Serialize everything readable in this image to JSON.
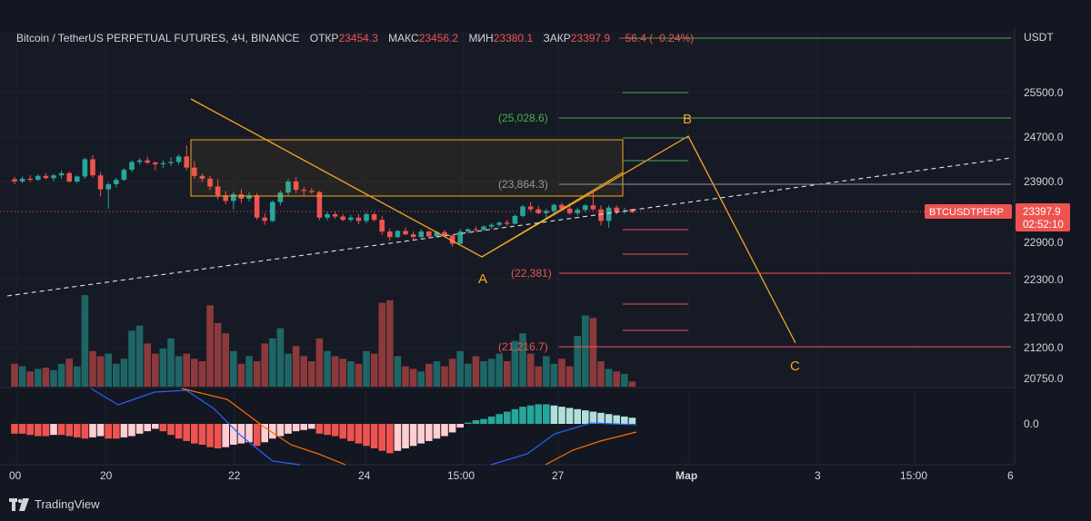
{
  "header": {
    "symbol": "Bitcoin / TetherUS PERPETUAL FUTURES, 4Ч, BINANCE",
    "open_label": "ОТКР",
    "open": "23454.3",
    "high_label": "МАКС",
    "high": "23456.2",
    "low_label": "МИН",
    "low": "23380.1",
    "close_label": "ЗАКР",
    "close": "23397.9",
    "change": "−56.4 (−0.24%)"
  },
  "price_axis": {
    "currency": "USDT",
    "ticks": [
      "25500.0",
      "24700.0",
      "23900.0",
      "22900.0",
      "22300.0",
      "21700.0",
      "21200.0",
      "20750.0"
    ],
    "macd_zero": "0.0"
  },
  "price_tag": {
    "symbol": "BTCUSDTPERP",
    "price": "23397.9",
    "countdown": "02:52:10"
  },
  "time_axis": [
    "00",
    "20",
    "22",
    "24",
    "15:00",
    "27",
    "Мар",
    "3",
    "15:00",
    "6"
  ],
  "fib_labels": [
    "(25,028.6)",
    "(23,864.3)",
    "(22,381)",
    "(21,216.7)"
  ],
  "pattern_labels": [
    "A",
    "B",
    "C"
  ],
  "brand": "TradingView",
  "colors": {
    "up": "#26a69a",
    "down": "#ef5350",
    "drawing": "#f5a623",
    "bg": "#131722"
  },
  "chart_data": {
    "type": "candlestick",
    "price_range": [
      20500,
      26400
    ],
    "candles": [
      [
        23990,
        24030,
        23900,
        23950
      ],
      [
        23950,
        24040,
        23920,
        24000
      ],
      [
        24000,
        24060,
        23940,
        23980
      ],
      [
        23980,
        24080,
        23960,
        24050
      ],
      [
        24050,
        24100,
        23990,
        24010
      ],
      [
        24010,
        24090,
        23960,
        24060
      ],
      [
        24060,
        24150,
        24000,
        24100
      ],
      [
        24100,
        24130,
        23930,
        23950
      ],
      [
        23950,
        24060,
        23920,
        24040
      ],
      [
        24040,
        24380,
        24000,
        24350
      ],
      [
        24350,
        24420,
        24020,
        24060
      ],
      [
        24060,
        24120,
        23680,
        23810
      ],
      [
        23810,
        23940,
        23460,
        23900
      ],
      [
        23900,
        24020,
        23840,
        23980
      ],
      [
        23980,
        24190,
        23960,
        24160
      ],
      [
        24160,
        24330,
        24120,
        24300
      ],
      [
        24300,
        24370,
        24250,
        24330
      ],
      [
        24330,
        24400,
        24260,
        24290
      ],
      [
        24290,
        24310,
        24150,
        24260
      ],
      [
        24260,
        24330,
        24190,
        24280
      ],
      [
        24280,
        24390,
        24230,
        24300
      ],
      [
        24300,
        24440,
        24250,
        24400
      ],
      [
        24400,
        24600,
        24150,
        24200
      ],
      [
        24200,
        24320,
        24000,
        24050
      ],
      [
        24050,
        24090,
        23940,
        24000
      ],
      [
        24000,
        24050,
        23790,
        23860
      ],
      [
        23860,
        23990,
        23630,
        23700
      ],
      [
        23700,
        23780,
        23540,
        23600
      ],
      [
        23600,
        23760,
        23450,
        23720
      ],
      [
        23720,
        23810,
        23560,
        23640
      ],
      [
        23640,
        23760,
        23590,
        23700
      ],
      [
        23700,
        23740,
        23260,
        23300
      ],
      [
        23300,
        23380,
        23170,
        23240
      ],
      [
        23240,
        23610,
        23220,
        23580
      ],
      [
        23580,
        23790,
        23520,
        23750
      ],
      [
        23750,
        24000,
        23700,
        23950
      ],
      [
        23950,
        24030,
        23740,
        23800
      ],
      [
        23800,
        23850,
        23680,
        23780
      ],
      [
        23780,
        23830,
        23730,
        23760
      ],
      [
        23760,
        23780,
        23250,
        23300
      ],
      [
        23300,
        23400,
        23250,
        23360
      ],
      [
        23360,
        23420,
        23280,
        23320
      ],
      [
        23320,
        23360,
        23240,
        23260
      ],
      [
        23260,
        23350,
        23220,
        23300
      ],
      [
        23300,
        23360,
        23180,
        23240
      ],
      [
        23240,
        23390,
        23200,
        23360
      ],
      [
        23360,
        23390,
        23230,
        23260
      ],
      [
        23260,
        23330,
        22990,
        23050
      ],
      [
        23050,
        23100,
        22890,
        22950
      ],
      [
        22950,
        23080,
        22930,
        23060
      ],
      [
        23060,
        23120,
        22980,
        23000
      ],
      [
        23000,
        23050,
        22910,
        22950
      ],
      [
        22950,
        23090,
        22940,
        23050
      ],
      [
        23050,
        23070,
        22940,
        22960
      ],
      [
        22960,
        23060,
        22940,
        23040
      ],
      [
        23040,
        23080,
        22950,
        22980
      ],
      [
        22980,
        22990,
        22780,
        22830
      ],
      [
        22830,
        23100,
        22820,
        23050
      ],
      [
        23050,
        23110,
        23010,
        23090
      ],
      [
        23090,
        23140,
        23040,
        23080
      ],
      [
        23080,
        23160,
        23060,
        23140
      ],
      [
        23140,
        23200,
        23100,
        23170
      ],
      [
        23170,
        23230,
        23130,
        23210
      ],
      [
        23210,
        23260,
        23150,
        23190
      ],
      [
        23190,
        23360,
        23180,
        23330
      ],
      [
        23330,
        23530,
        23300,
        23500
      ],
      [
        23500,
        23580,
        23410,
        23450
      ],
      [
        23450,
        23510,
        23360,
        23380
      ],
      [
        23380,
        23460,
        23280,
        23420
      ],
      [
        23420,
        23550,
        23380,
        23530
      ],
      [
        23530,
        23570,
        23430,
        23460
      ],
      [
        23460,
        23540,
        23350,
        23380
      ],
      [
        23380,
        23480,
        23340,
        23440
      ],
      [
        23440,
        23540,
        23400,
        23520
      ],
      [
        23520,
        23760,
        23430,
        23450
      ],
      [
        23450,
        23520,
        23160,
        23240
      ],
      [
        23240,
        23520,
        23120,
        23480
      ],
      [
        23480,
        23520,
        23360,
        23400
      ],
      [
        23400,
        23480,
        23370,
        23420
      ],
      [
        23454.3,
        23456.2,
        23380.1,
        23397.9
      ]
    ],
    "volume": [
      18,
      16,
      12,
      14,
      15,
      13,
      18,
      22,
      16,
      72,
      28,
      24,
      26,
      18,
      22,
      44,
      48,
      34,
      26,
      30,
      38,
      24,
      26,
      22,
      20,
      64,
      50,
      42,
      28,
      18,
      24,
      20,
      34,
      38,
      46,
      26,
      32,
      24,
      20,
      38,
      28,
      24,
      22,
      20,
      18,
      28,
      26,
      66,
      68,
      24,
      16,
      14,
      12,
      18,
      20,
      16,
      22,
      28,
      18,
      24,
      20,
      22,
      26,
      20,
      36,
      42,
      26,
      16,
      24,
      18,
      22,
      16,
      40,
      56,
      54,
      20,
      14,
      12,
      10,
      4
    ],
    "macd_hist": [
      -8,
      -8,
      -9,
      -10,
      -10,
      -9,
      -9,
      -10,
      -11,
      -12,
      -11,
      -10,
      -12,
      -12,
      -11,
      -10,
      -8,
      -6,
      -4,
      -6,
      -9,
      -12,
      -14,
      -16,
      -17,
      -19,
      -20,
      -19,
      -17,
      -16,
      -15,
      -18,
      -15,
      -12,
      -10,
      -8,
      -6,
      -5,
      -4,
      -8,
      -9,
      -10,
      -12,
      -14,
      -16,
      -18,
      -20,
      -22,
      -24,
      -22,
      -20,
      -18,
      -16,
      -14,
      -12,
      -10,
      -7,
      -3,
      1,
      3,
      4,
      6,
      8,
      10,
      12,
      14,
      15,
      16,
      16,
      15,
      14,
      13,
      12,
      11,
      10,
      9,
      8,
      7,
      6,
      5
    ],
    "macd_range": [
      -30,
      30
    ]
  }
}
